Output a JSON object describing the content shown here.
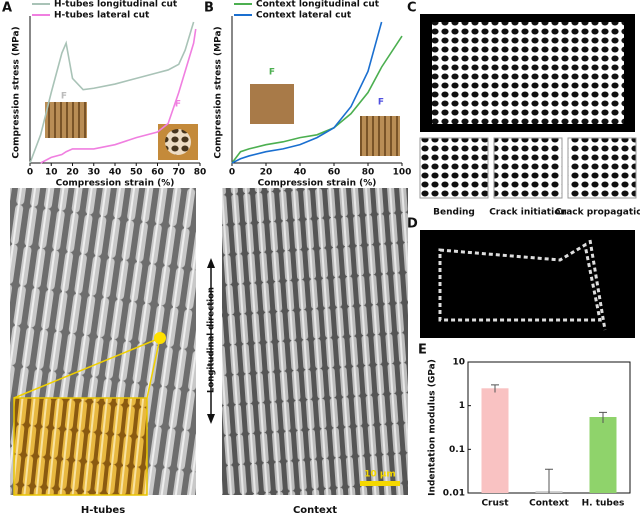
{
  "chart_data": [
    {
      "type": "line",
      "xlabel": "Compression strain (%)",
      "ylabel": "Compression stress (MPa)",
      "x": [
        0,
        5,
        10,
        15,
        17,
        20,
        25,
        30,
        40,
        50,
        60,
        65,
        70,
        73,
        77,
        78
      ],
      "xlim": [
        0,
        80
      ],
      "xticks": [
        0,
        10,
        20,
        30,
        40,
        50,
        60,
        70,
        80
      ],
      "ylim": [
        0,
        10
      ],
      "series": [
        {
          "name": "H-tubes longitudinal cut",
          "color": "#a9c3b7",
          "values": [
            0,
            2,
            5,
            7.8,
            8.5,
            6,
            5.2,
            5.3,
            5.6,
            6,
            6.4,
            6.6,
            7,
            8,
            10,
            null
          ]
        },
        {
          "name": "H-tubes lateral cut",
          "color": "#f07fe0",
          "values": [
            null,
            0,
            0.4,
            0.6,
            0.8,
            1,
            1,
            1,
            1.3,
            1.8,
            2.2,
            2.8,
            5,
            6.5,
            8.5,
            9.5
          ]
        }
      ]
    },
    {
      "type": "line",
      "xlabel": "Compression strain (%)",
      "ylabel": "Compression stress (MPa)",
      "x": [
        0,
        5,
        10,
        20,
        30,
        40,
        50,
        60,
        70,
        80,
        88,
        100
      ],
      "xlim": [
        0,
        100
      ],
      "xticks": [
        0,
        20,
        40,
        60,
        80,
        100
      ],
      "ylim": [
        0,
        10
      ],
      "series": [
        {
          "name": "Context longitudinal cut",
          "color": "#4caf50",
          "values": [
            0,
            0.8,
            1,
            1.3,
            1.5,
            1.8,
            2,
            2.5,
            3.5,
            5,
            6.8,
            9
          ]
        },
        {
          "name": "Context lateral cut",
          "color": "#1a6fd0",
          "values": [
            0,
            0.3,
            0.5,
            0.8,
            1,
            1.3,
            1.8,
            2.5,
            4,
            6.5,
            10,
            null
          ]
        }
      ]
    },
    {
      "type": "bar",
      "ylabel": "Indentation modulus (GPa)",
      "log_scale": true,
      "categories": [
        "Crust",
        "Context",
        "H. tubes"
      ],
      "values": [
        2.5,
        0.011,
        0.55
      ],
      "errors": [
        0.5,
        0.024,
        0.15
      ],
      "colors": [
        "#f9c2c2",
        "#c8c8c8",
        "#8fd36b"
      ],
      "ylim": [
        0.01,
        10
      ],
      "yticks": [
        10,
        1,
        0.1,
        0.01
      ]
    }
  ],
  "labels": {
    "panels": [
      "A",
      "B",
      "C",
      "D",
      "E"
    ],
    "force": [
      "F",
      "F",
      "F",
      "F"
    ],
    "crack": [
      "Bending",
      "Crack initiation",
      "Crack propagation"
    ],
    "sem_left": "H-tubes",
    "sem_right": "Context",
    "direction": "Longitudinal direction",
    "scale_bar": "10 μm"
  }
}
